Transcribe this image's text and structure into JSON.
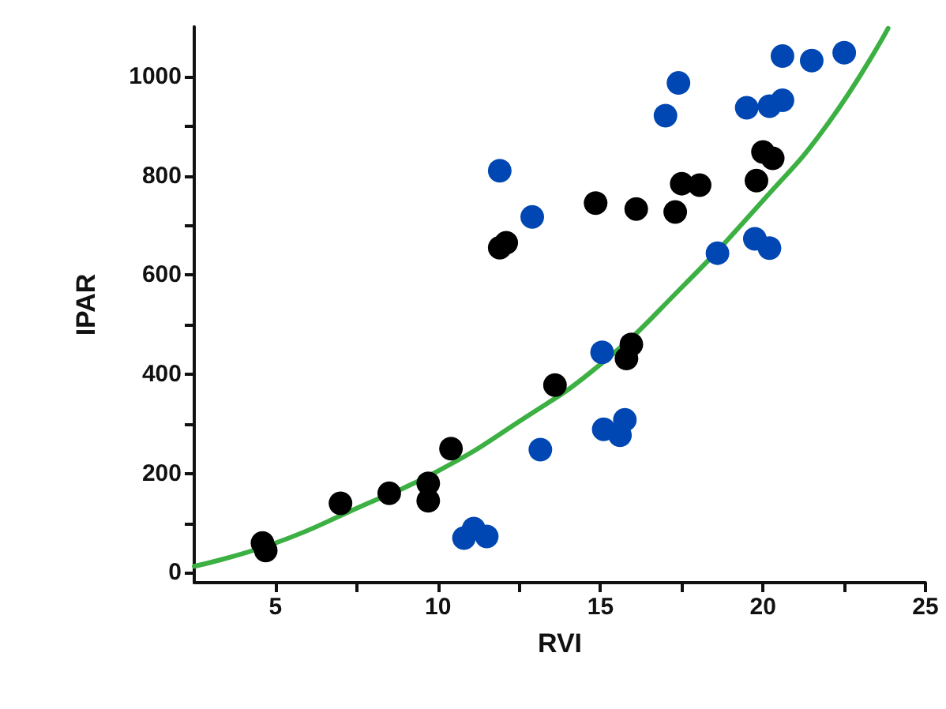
{
  "chart_data": {
    "type": "scatter",
    "xlabel": "RVI",
    "ylabel": "IPAR",
    "xlim": [
      2.5,
      25
    ],
    "ylim": [
      -20,
      1100
    ],
    "xticks": [
      5,
      {
        "value": 7.5,
        "label": null
      },
      10,
      {
        "value": 12.5,
        "label": null
      },
      15,
      {
        "value": 17.5,
        "label": null
      },
      20,
      {
        "value": 22.5,
        "label": null
      },
      25
    ],
    "yticks": [
      0,
      {
        "value": 100,
        "label": null
      },
      200,
      {
        "value": 300,
        "label": null
      },
      400,
      {
        "value": 500,
        "label": null
      },
      600,
      {
        "value": 700,
        "label": null
      },
      800,
      {
        "value": 900,
        "label": null
      },
      1000
    ],
    "grid": false,
    "marker": "circle",
    "series": [
      {
        "type": "line",
        "color": "#3cb043",
        "marker": "none",
        "line_style": "solid",
        "x": [
          2.5,
          5,
          7.5,
          10,
          12.5,
          15,
          17.5,
          20,
          22,
          23.85
        ],
        "values": [
          13,
          60,
          130,
          205,
          305,
          420,
          575,
          750,
          905,
          1097
        ]
      },
      {
        "color": "#000000",
        "x": [
          4.6,
          4.7,
          7.0,
          8.5,
          9.7,
          9.7,
          10.4,
          11.9,
          12.1,
          13.6,
          14.85,
          16.1,
          17.3,
          17.5,
          18.05,
          19.8,
          20.0,
          20.3,
          15.95,
          15.8
        ],
        "values": [
          60,
          45,
          140,
          160,
          180,
          145,
          250,
          655,
          665,
          378,
          745,
          733,
          727,
          784,
          781,
          790,
          848,
          835,
          460,
          432
        ]
      },
      {
        "color": "#0047b3",
        "x": [
          11.9,
          12.9,
          13.15,
          10.8,
          11.1,
          11.5,
          15.05,
          15.1,
          15.6,
          15.75,
          18.6,
          19.75,
          20.2,
          17.0,
          17.4,
          19.5,
          20.2,
          20.6,
          20.6,
          21.5,
          22.5
        ],
        "values": [
          810,
          717,
          248,
          70,
          89,
          73,
          444,
          289,
          277,
          308,
          644,
          673,
          654,
          921,
          987,
          937,
          940,
          952,
          1041,
          1032,
          1048
        ]
      }
    ]
  }
}
